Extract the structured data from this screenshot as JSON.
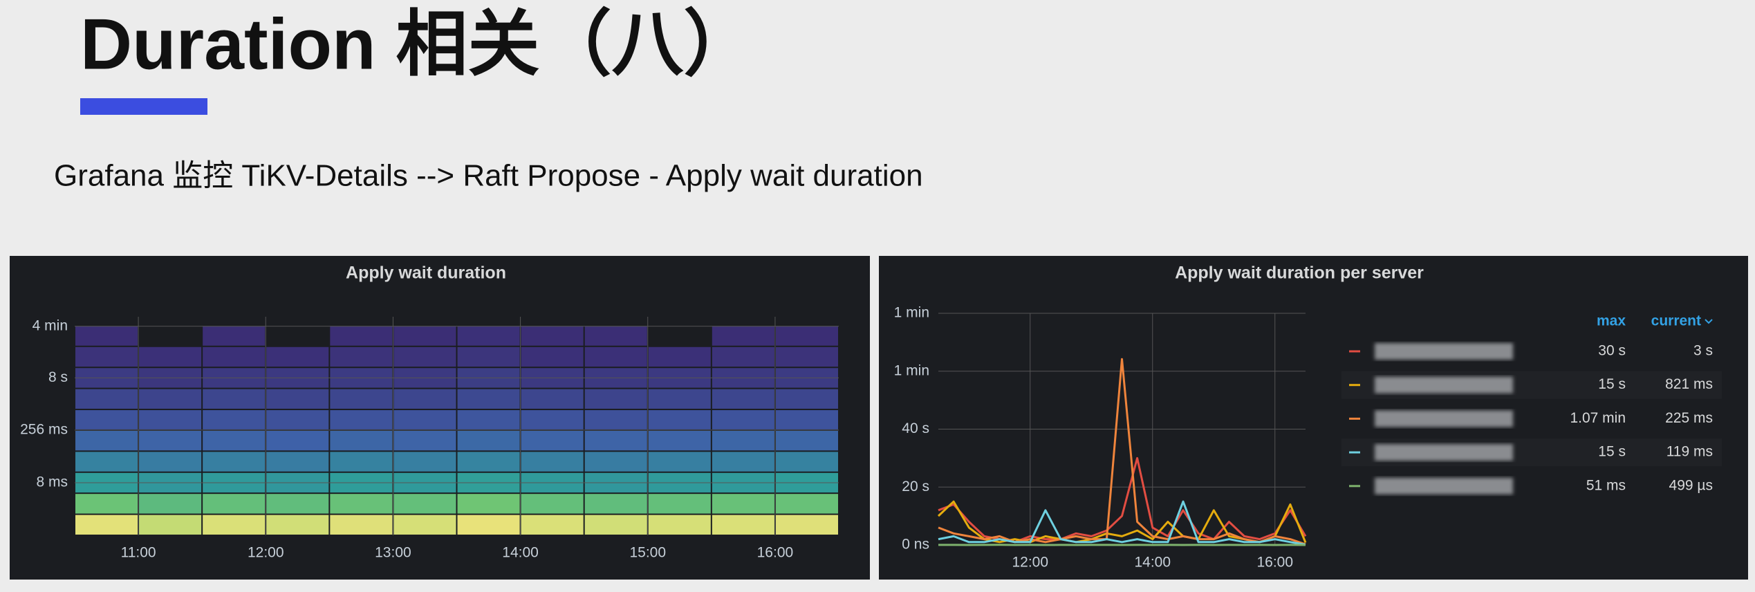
{
  "header": {
    "title": "Duration 相关（八）",
    "subtitle": "Grafana 监控 TiKV-Details -->  Raft Propose -  Apply wait duration"
  },
  "chart_data": [
    {
      "type": "heatmap",
      "title": "Apply wait duration",
      "log_scale": true,
      "grid": true,
      "xlim": [
        "10:30",
        "16:30"
      ],
      "xticks": [
        "11:00",
        "12:00",
        "13:00",
        "14:00",
        "15:00",
        "16:00"
      ],
      "ylim": [
        0.00025,
        450
      ],
      "yticks": [
        {
          "value": 0.008,
          "label": "8 ms"
        },
        {
          "value": 0.256,
          "label": "256 ms"
        },
        {
          "value": 8,
          "label": "8 s"
        },
        {
          "value": 240,
          "label": "4 min"
        }
      ],
      "x_bins": [
        "10:30",
        "11:00",
        "11:30",
        "12:00",
        "12:30",
        "13:00",
        "13:30",
        "14:00",
        "14:30",
        "15:00",
        "15:30",
        "16:00",
        "16:30"
      ],
      "y_bins": [
        0.00025,
        0.001,
        0.004,
        0.016,
        0.064,
        0.256,
        1,
        4,
        16,
        64,
        256
      ],
      "color_scale": [
        "#3b2c73",
        "#3f5fa8",
        "#2f9e9a",
        "#7fcf6a",
        "#e8e27a"
      ],
      "values": [
        [
          92,
          64,
          46,
          36,
          26,
          18,
          12,
          7,
          3,
          1
        ],
        [
          85,
          60,
          44,
          34,
          25,
          17,
          11,
          5,
          2,
          0
        ],
        [
          90,
          62,
          45,
          35,
          25,
          18,
          12,
          6,
          2,
          1
        ],
        [
          88,
          61,
          44,
          34,
          24,
          17,
          11,
          6,
          2,
          0
        ],
        [
          91,
          63,
          46,
          36,
          26,
          18,
          12,
          7,
          3,
          1
        ],
        [
          89,
          62,
          45,
          35,
          25,
          18,
          12,
          6,
          3,
          1
        ],
        [
          93,
          65,
          47,
          37,
          27,
          19,
          13,
          8,
          4,
          2
        ],
        [
          90,
          62,
          45,
          35,
          25,
          18,
          12,
          6,
          2,
          1
        ],
        [
          88,
          61,
          44,
          34,
          25,
          17,
          11,
          6,
          2,
          1
        ],
        [
          89,
          62,
          45,
          35,
          25,
          18,
          12,
          6,
          2,
          0
        ],
        [
          90,
          63,
          45,
          35,
          26,
          18,
          12,
          6,
          3,
          1
        ],
        [
          91,
          63,
          46,
          36,
          26,
          18,
          12,
          7,
          3,
          1
        ]
      ]
    },
    {
      "type": "line",
      "title": "Apply wait duration per server",
      "grid": true,
      "xlim": [
        "10:30",
        "16:30"
      ],
      "xticks": [
        "12:00",
        "14:00",
        "16:00"
      ],
      "ylim": [
        0,
        80
      ],
      "yticks": [
        {
          "value": 0,
          "label": "0 ns"
        },
        {
          "value": 20,
          "label": "20 s"
        },
        {
          "value": 40,
          "label": "40 s"
        },
        {
          "value": 60,
          "label": "1 min"
        },
        {
          "value": 80,
          "label": "1 min"
        }
      ],
      "x": [
        "10:30",
        "10:45",
        "11:00",
        "11:15",
        "11:30",
        "11:45",
        "12:00",
        "12:15",
        "12:30",
        "12:45",
        "13:00",
        "13:15",
        "13:30",
        "13:45",
        "14:00",
        "14:15",
        "14:30",
        "14:45",
        "15:00",
        "15:15",
        "15:30",
        "15:45",
        "16:00",
        "16:15",
        "16:30"
      ],
      "legend": {
        "position": "right",
        "columns": [
          "max",
          "current"
        ]
      },
      "series": [
        {
          "color": "#e24d42",
          "legend_values": [
            "30 s",
            "3 s"
          ],
          "values": [
            12,
            14,
            8,
            3,
            2,
            1,
            3,
            2,
            2,
            4,
            3,
            5,
            10,
            30,
            6,
            3,
            12,
            4,
            2,
            8,
            3,
            2,
            4,
            12,
            3
          ]
        },
        {
          "color": "#e5ac0e",
          "legend_values": [
            "15 s",
            "821 ms"
          ],
          "values": [
            10,
            15,
            6,
            2,
            1,
            2,
            1,
            3,
            2,
            1,
            2,
            4,
            3,
            5,
            2,
            8,
            3,
            2,
            12,
            3,
            2,
            1,
            3,
            14,
            0.821
          ]
        },
        {
          "color": "#ef843c",
          "legend_values": [
            "1.07 min",
            "225 ms"
          ],
          "values": [
            6,
            4,
            3,
            2,
            3,
            1,
            2,
            1,
            2,
            3,
            2,
            2,
            64.2,
            8,
            3,
            2,
            3,
            2,
            2,
            4,
            2,
            1,
            3,
            2,
            0.225
          ]
        },
        {
          "color": "#6ed0e0",
          "legend_values": [
            "15 s",
            "119 ms"
          ],
          "values": [
            2,
            3,
            1,
            1,
            2,
            1,
            1,
            12,
            2,
            1,
            1,
            2,
            1,
            2,
            1,
            1,
            15,
            1,
            1,
            2,
            1,
            1,
            2,
            1,
            0.119
          ]
        },
        {
          "color": "#7eb26d",
          "legend_values": [
            "51 ms",
            "499 µs"
          ],
          "values": [
            0.02,
            0.03,
            0.01,
            0.02,
            0.051,
            0.01,
            0.02,
            0.01,
            0.02,
            0.01,
            0.03,
            0.02,
            0.01,
            0.02,
            0.01,
            0.02,
            0.01,
            0.02,
            0.01,
            0.02,
            0.01,
            0.02,
            0.01,
            0.02,
            0.000499
          ]
        }
      ]
    }
  ]
}
